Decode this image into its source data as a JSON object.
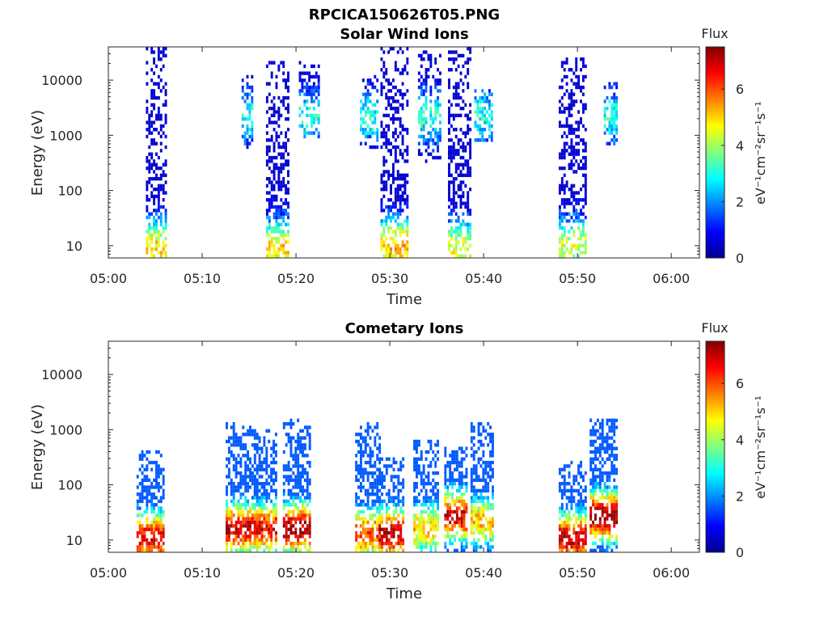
{
  "figure": {
    "title": "RPCICA150626T05.PNG",
    "time_axis": {
      "label": "Time",
      "ticks": [
        "05:00",
        "05:10",
        "05:20",
        "05:30",
        "05:40",
        "05:50",
        "06:00"
      ],
      "tick_minutes": [
        0,
        10,
        20,
        30,
        40,
        50,
        60
      ],
      "xlim_minutes": [
        0,
        63
      ]
    },
    "energy_axis": {
      "label": "Energy (eV)",
      "scale": "log",
      "ticks": [
        "10",
        "100",
        "1000",
        "10000"
      ],
      "tick_values": [
        10,
        100,
        1000,
        10000
      ],
      "ylim": [
        6,
        40000
      ]
    },
    "colorbar": {
      "title": "Flux",
      "label": "eV⁻¹cm⁻²sr⁻¹s⁻¹",
      "ticks": [
        "0",
        "2",
        "4",
        "6"
      ],
      "tick_values": [
        0,
        2,
        4,
        6
      ],
      "range": [
        0,
        7.5
      ],
      "colormap": "jet"
    }
  },
  "chart_data": [
    {
      "type": "heatmap",
      "title": "Solar Wind Ions",
      "xlabel": "Time",
      "ylabel": "Energy (eV)",
      "x_unit": "minutes after 05:00",
      "xlim": [
        0,
        63
      ],
      "ylim": [
        6,
        40000
      ],
      "y_scale": "log",
      "grid": false,
      "bursts": [
        {
          "t_start": 4.0,
          "t_end": 6.2,
          "e_min": 6,
          "e_max": 38000,
          "peak_flux": 5.0,
          "peak_energy": 8
        },
        {
          "t_start": 16.8,
          "t_end": 19.2,
          "e_min": 6,
          "e_max": 22000,
          "peak_flux": 5.0,
          "peak_energy": 8
        },
        {
          "t_start": 14.2,
          "t_end": 15.4,
          "e_min": 500,
          "e_max": 12000,
          "peak_flux": 3.0,
          "peak_energy": 2000
        },
        {
          "t_start": 20.3,
          "t_end": 22.5,
          "e_min": 800,
          "e_max": 20000,
          "peak_flux": 3.0,
          "peak_energy": 2000
        },
        {
          "t_start": 26.8,
          "t_end": 28.8,
          "e_min": 500,
          "e_max": 12000,
          "peak_flux": 3.0,
          "peak_energy": 2000
        },
        {
          "t_start": 29.0,
          "t_end": 31.8,
          "e_min": 6,
          "e_max": 38000,
          "peak_flux": 5.2,
          "peak_energy": 9
        },
        {
          "t_start": 33.0,
          "t_end": 35.3,
          "e_min": 300,
          "e_max": 30000,
          "peak_flux": 3.0,
          "peak_energy": 2000
        },
        {
          "t_start": 36.2,
          "t_end": 38.5,
          "e_min": 6,
          "e_max": 38000,
          "peak_flux": 4.6,
          "peak_energy": 8
        },
        {
          "t_start": 39.0,
          "t_end": 41.0,
          "e_min": 700,
          "e_max": 6000,
          "peak_flux": 3.0,
          "peak_energy": 2000
        },
        {
          "t_start": 48.0,
          "t_end": 51.0,
          "e_min": 6,
          "e_max": 24000,
          "peak_flux": 4.4,
          "peak_energy": 9
        },
        {
          "t_start": 52.8,
          "t_end": 54.3,
          "e_min": 600,
          "e_max": 8000,
          "peak_flux": 3.0,
          "peak_energy": 2000
        }
      ]
    },
    {
      "type": "heatmap",
      "title": "Cometary Ions",
      "xlabel": "Time",
      "ylabel": "Energy (eV)",
      "x_unit": "minutes after 05:00",
      "xlim": [
        0,
        63
      ],
      "ylim": [
        6,
        40000
      ],
      "y_scale": "log",
      "grid": false,
      "bursts": [
        {
          "t_start": 3.0,
          "t_end": 6.0,
          "e_min": 6,
          "e_max": 400,
          "peak_flux": 6.8,
          "peak_energy": 10
        },
        {
          "t_start": 12.5,
          "t_end": 15.8,
          "e_min": 6,
          "e_max": 1300,
          "peak_flux": 7.0,
          "peak_energy": 15
        },
        {
          "t_start": 15.5,
          "t_end": 18.0,
          "e_min": 6,
          "e_max": 900,
          "peak_flux": 6.6,
          "peak_energy": 15
        },
        {
          "t_start": 18.6,
          "t_end": 21.5,
          "e_min": 6,
          "e_max": 1500,
          "peak_flux": 7.3,
          "peak_energy": 15
        },
        {
          "t_start": 26.3,
          "t_end": 29.0,
          "e_min": 6,
          "e_max": 1300,
          "peak_flux": 6.0,
          "peak_energy": 12
        },
        {
          "t_start": 28.8,
          "t_end": 31.5,
          "e_min": 6,
          "e_max": 300,
          "peak_flux": 7.1,
          "peak_energy": 12
        },
        {
          "t_start": 32.5,
          "t_end": 35.2,
          "e_min": 6,
          "e_max": 600,
          "peak_flux": 5.0,
          "peak_energy": 15
        },
        {
          "t_start": 35.8,
          "t_end": 38.2,
          "e_min": 6,
          "e_max": 450,
          "peak_flux": 6.8,
          "peak_energy": 25
        },
        {
          "t_start": 38.6,
          "t_end": 41.0,
          "e_min": 6,
          "e_max": 1300,
          "peak_flux": 5.2,
          "peak_energy": 20
        },
        {
          "t_start": 48.0,
          "t_end": 51.0,
          "e_min": 6,
          "e_max": 250,
          "peak_flux": 7.0,
          "peak_energy": 10
        },
        {
          "t_start": 51.3,
          "t_end": 54.2,
          "e_min": 6,
          "e_max": 1400,
          "peak_flux": 7.3,
          "peak_energy": 25
        }
      ]
    }
  ]
}
